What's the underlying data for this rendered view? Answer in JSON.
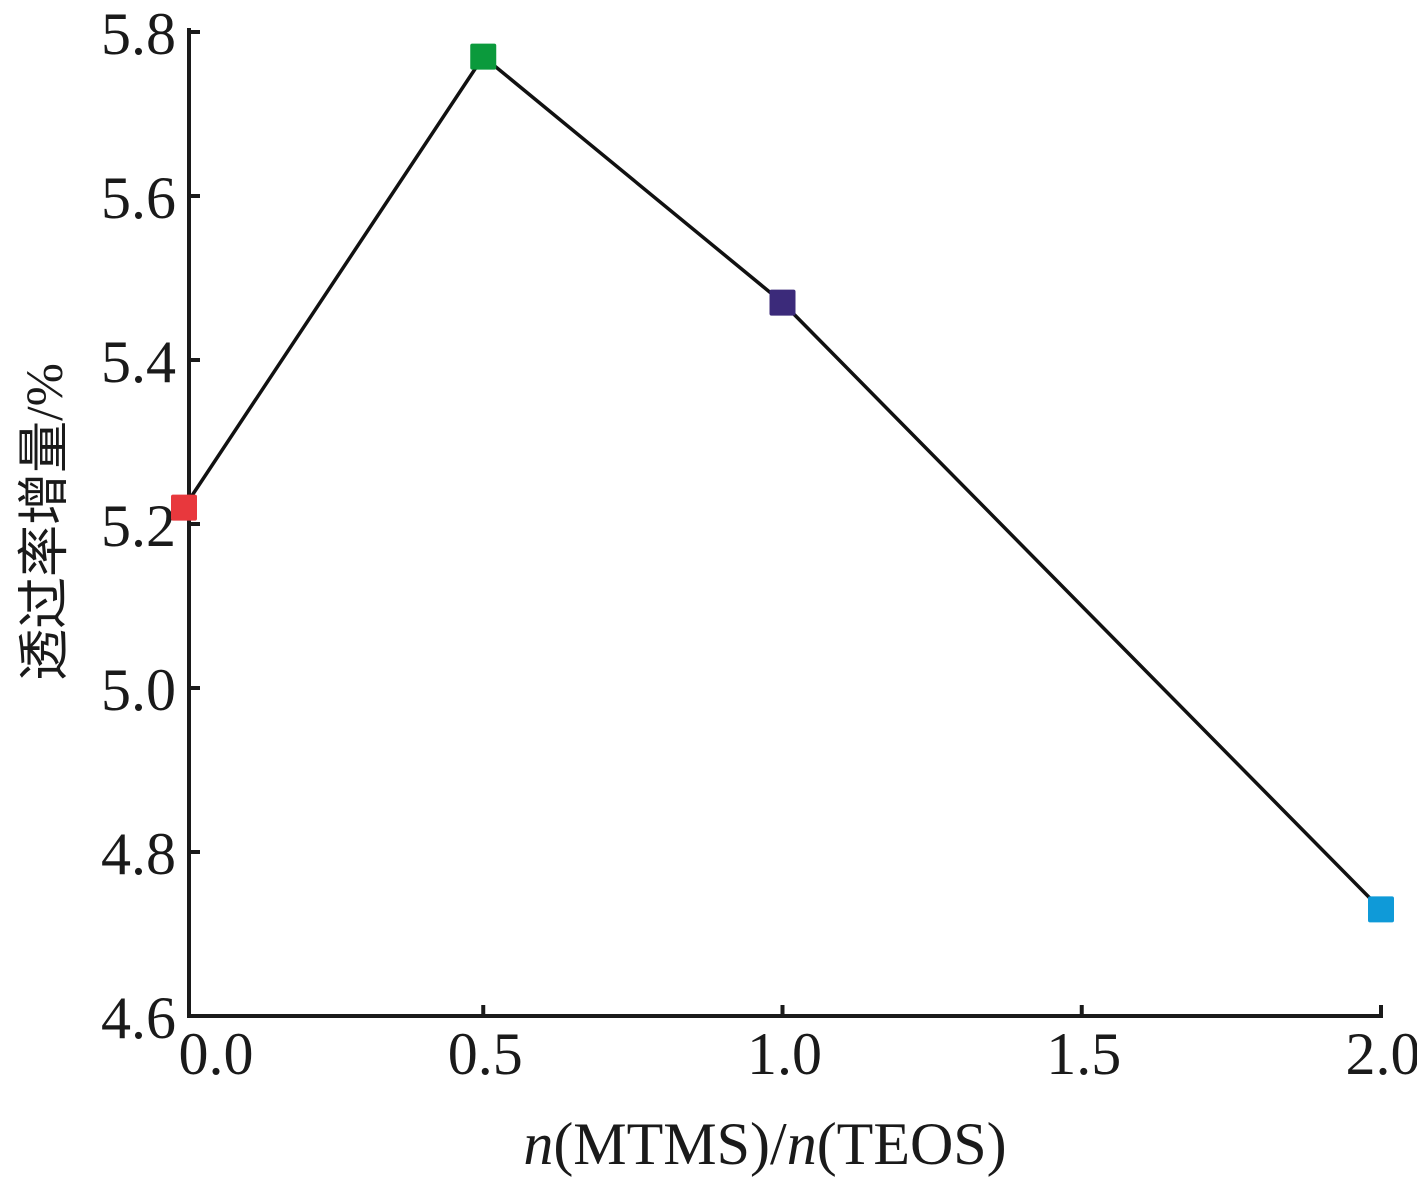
{
  "chart_data": {
    "type": "line",
    "title": "",
    "xlabel": {
      "italic_1": "n",
      "part_1": "(MTMS)/",
      "italic_2": "n",
      "part_2": "(TEOS)"
    },
    "ylabel": "透过率增量/%",
    "x_ticks": [
      "0.0",
      "0.5",
      "1.0",
      "1.5",
      "2.0"
    ],
    "y_ticks": [
      "4.6",
      "4.8",
      "5.0",
      "5.2",
      "5.4",
      "5.6",
      "5.8"
    ],
    "xlim": [
      -0.02,
      2.0
    ],
    "ylim": [
      4.6,
      5.8
    ],
    "grid": false,
    "series": [
      {
        "x": [
          0.0,
          0.5,
          1.0,
          2.0
        ],
        "y": [
          5.22,
          5.77,
          5.47,
          4.73
        ],
        "line_color": "#111111",
        "marker": "square",
        "marker_colors": [
          "#e8383d",
          "#0b9a3c",
          "#3b2a7a",
          "#0f9ad8"
        ]
      }
    ]
  }
}
